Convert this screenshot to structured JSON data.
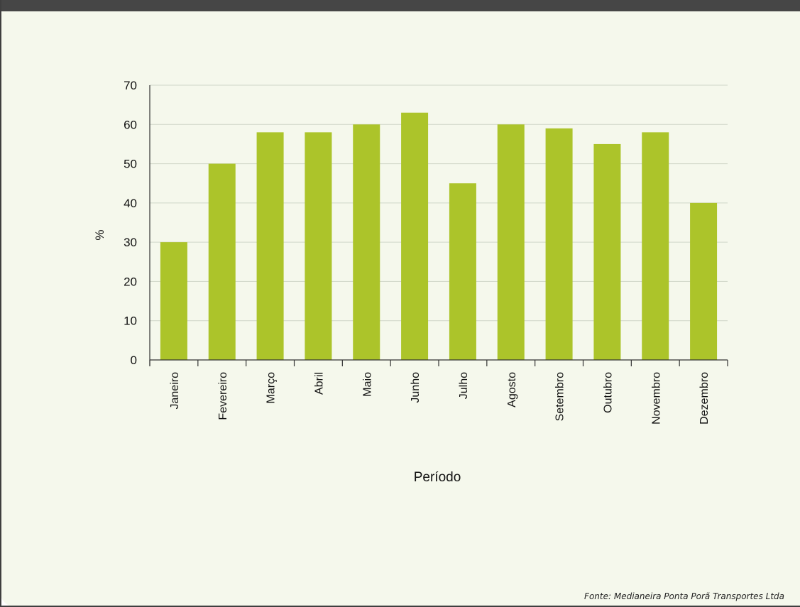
{
  "source_note": "Fonte: Medianeira Ponta Porã Transportes Ltda",
  "colors": {
    "bar": "#acc42a",
    "grid": "#cfd6c8",
    "axis": "#333333",
    "background": "#f5f8ec",
    "header": "#464646"
  },
  "chart_data": {
    "type": "bar",
    "title": "",
    "xlabel": "Período",
    "ylabel": "%",
    "ylim": [
      0,
      70
    ],
    "yticks": [
      0,
      10,
      20,
      30,
      40,
      50,
      60,
      70
    ],
    "grid": true,
    "legend": "none",
    "categories": [
      "Janeiro",
      "Fevereiro",
      "Março",
      "Abril",
      "Maio",
      "Junho",
      "Julho",
      "Agosto",
      "Setembro",
      "Outubro",
      "Novembro",
      "Dezembro"
    ],
    "values": [
      30,
      50,
      58,
      58,
      60,
      63,
      45,
      60,
      59,
      55,
      58,
      40
    ]
  }
}
